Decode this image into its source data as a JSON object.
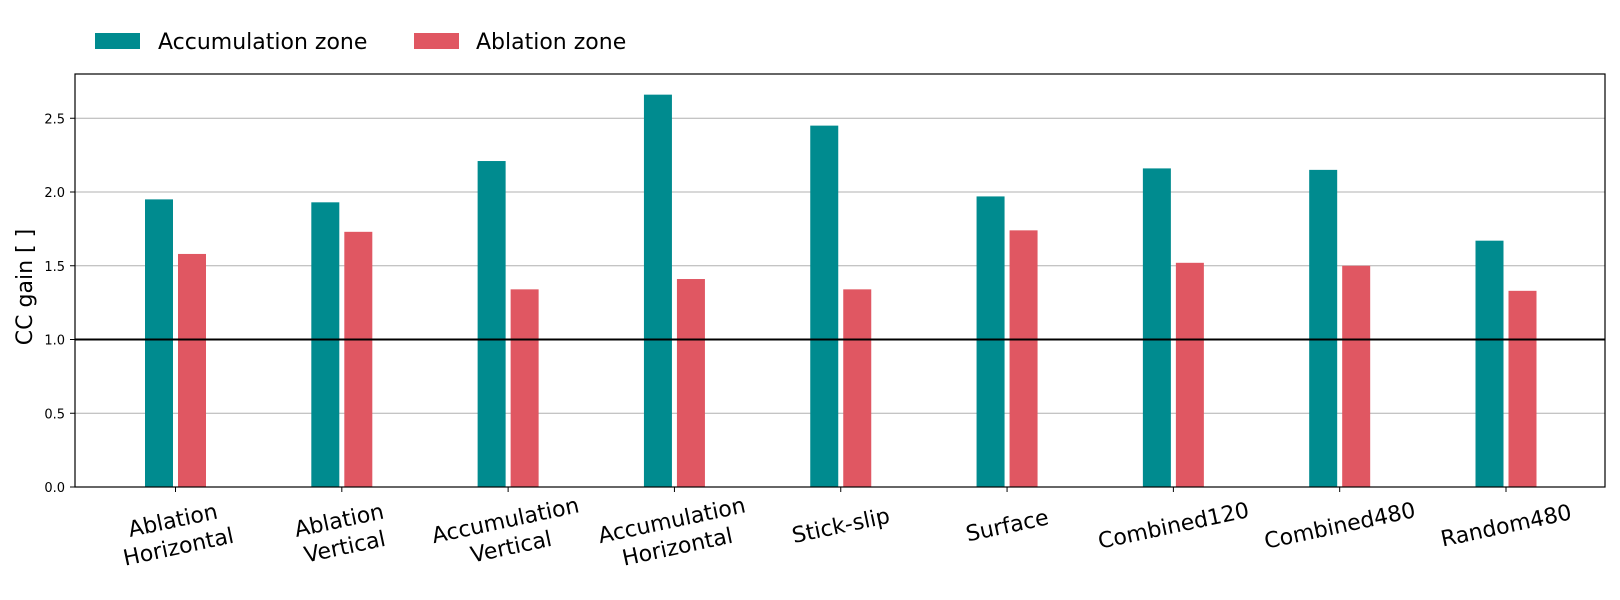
{
  "chart_data": {
    "type": "bar",
    "title": "",
    "xlabel": "",
    "ylabel": "CC gain [ ]",
    "ylim": [
      0,
      2.8
    ],
    "yticks": [
      "0.0",
      "0.5",
      "1.0",
      "1.5",
      "2.0",
      "2.5"
    ],
    "grid": "horizontal",
    "legend_position": "top-left, outside plot",
    "reference_line": 1.0,
    "categories": [
      [
        "Ablation",
        "Horizontal"
      ],
      [
        "Ablation",
        "Vertical"
      ],
      [
        "Accumulation",
        "Vertical"
      ],
      [
        "Accumulation",
        "Horizontal"
      ],
      [
        "Stick-slip"
      ],
      [
        "Surface"
      ],
      [
        "Combined120"
      ],
      [
        "Combined480"
      ],
      [
        "Random480"
      ]
    ],
    "series": [
      {
        "name": "Accumulation zone",
        "color": "#008b8f",
        "values": [
          1.95,
          1.93,
          2.21,
          2.66,
          2.45,
          1.97,
          2.16,
          2.15,
          1.67
        ]
      },
      {
        "name": "Ablation zone",
        "color": "#e05762",
        "values": [
          1.58,
          1.73,
          1.34,
          1.41,
          1.34,
          1.74,
          1.52,
          1.5,
          1.33
        ]
      }
    ]
  }
}
